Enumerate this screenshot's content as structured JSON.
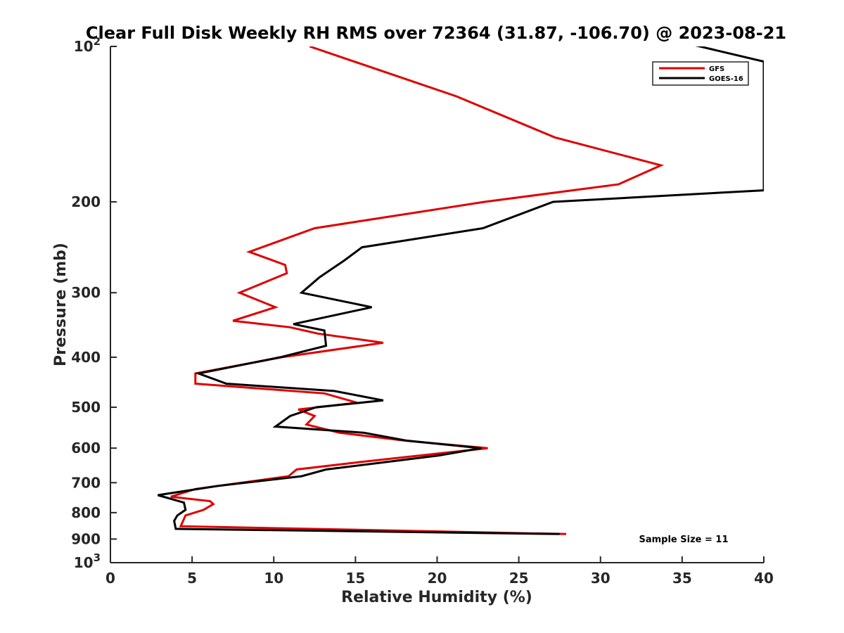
{
  "chart_data": {
    "type": "line",
    "title": "Clear Full Disk Weekly RH RMS over 72364 (31.87, -106.70) @ 2023-08-21",
    "xlabel": "Relative Humidity (%)",
    "ylabel": "Pressure (mb)",
    "xlim": [
      0,
      40
    ],
    "ylim": [
      100,
      1000
    ],
    "y_scale": "log",
    "y_reversed": true,
    "x_ticks": [
      0,
      5,
      10,
      15,
      20,
      25,
      30,
      35,
      40
    ],
    "x_tick_labels": [
      "0",
      "5",
      "10",
      "15",
      "20",
      "25",
      "30",
      "35",
      "40"
    ],
    "y_ticks": [
      100,
      200,
      300,
      400,
      500,
      600,
      700,
      800,
      900,
      1000
    ],
    "y_tick_labels": [
      "10^2",
      "200",
      "300",
      "400",
      "500",
      "600",
      "700",
      "800",
      "900",
      "10^3"
    ],
    "grid": false,
    "legend_position": "top-right",
    "annotation": "Sample Size = 11",
    "series": [
      {
        "name": "GFS",
        "color": "#e00000",
        "points": [
          [
            12.2,
            100
          ],
          [
            21.2,
            125
          ],
          [
            27.2,
            150
          ],
          [
            33.7,
            170
          ],
          [
            31.1,
            185
          ],
          [
            22.9,
            200
          ],
          [
            12.5,
            225
          ],
          [
            8.5,
            250
          ],
          [
            10.7,
            265
          ],
          [
            10.8,
            275
          ],
          [
            7.9,
            300
          ],
          [
            10.1,
            320
          ],
          [
            7.5,
            340
          ],
          [
            11.0,
            350
          ],
          [
            12.7,
            360
          ],
          [
            16.7,
            375
          ],
          [
            10.5,
            400
          ],
          [
            5.2,
            430
          ],
          [
            5.2,
            450
          ],
          [
            13.1,
            470
          ],
          [
            15.1,
            490
          ],
          [
            11.5,
            505
          ],
          [
            12.5,
            520
          ],
          [
            12.0,
            540
          ],
          [
            14.0,
            560
          ],
          [
            18.0,
            580
          ],
          [
            23.1,
            600
          ],
          [
            20.0,
            615
          ],
          [
            15.0,
            640
          ],
          [
            11.4,
            660
          ],
          [
            10.9,
            680
          ],
          [
            5.2,
            720
          ],
          [
            3.7,
            745
          ],
          [
            6.1,
            760
          ],
          [
            6.3,
            770
          ],
          [
            5.7,
            790
          ],
          [
            4.6,
            810
          ],
          [
            4.3,
            850
          ],
          [
            27.9,
            880
          ]
        ]
      },
      {
        "name": "GOES-16",
        "color": "#000000",
        "points": [
          [
            35.5,
            99
          ],
          [
            40.0,
            107
          ],
          [
            40.0,
            190
          ],
          [
            27.1,
            200
          ],
          [
            22.8,
            225
          ],
          [
            15.4,
            245
          ],
          [
            14.3,
            260
          ],
          [
            12.8,
            280
          ],
          [
            11.7,
            300
          ],
          [
            16.0,
            320
          ],
          [
            11.2,
            345
          ],
          [
            13.1,
            355
          ],
          [
            13.2,
            380
          ],
          [
            10.4,
            400
          ],
          [
            5.4,
            430
          ],
          [
            7.1,
            450
          ],
          [
            13.7,
            465
          ],
          [
            16.7,
            485
          ],
          [
            12.6,
            500
          ],
          [
            11.0,
            520
          ],
          [
            10.1,
            545
          ],
          [
            15.5,
            560
          ],
          [
            18.1,
            580
          ],
          [
            22.7,
            600
          ],
          [
            20.1,
            620
          ],
          [
            13.2,
            660
          ],
          [
            11.7,
            680
          ],
          [
            6.6,
            710
          ],
          [
            2.9,
            740
          ],
          [
            4.5,
            765
          ],
          [
            4.6,
            790
          ],
          [
            4.1,
            810
          ],
          [
            3.9,
            830
          ],
          [
            4.0,
            860
          ],
          [
            27.5,
            880
          ]
        ]
      }
    ]
  }
}
